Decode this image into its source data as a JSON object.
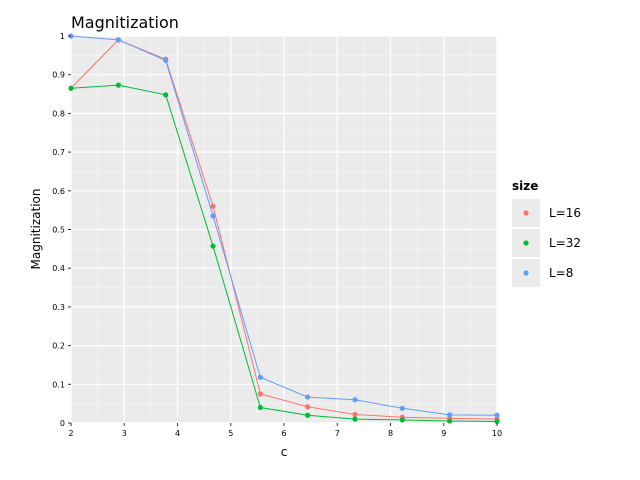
{
  "chart_data": {
    "type": "line",
    "title": "Magnitization",
    "xlabel": "c",
    "ylabel": "Magnitization",
    "xlim": [
      2,
      10
    ],
    "ylim": [
      0,
      1
    ],
    "x_ticks": [
      2,
      3,
      4,
      5,
      6,
      7,
      8,
      9,
      10
    ],
    "y_ticks": [
      0,
      0.1,
      0.2,
      0.3,
      0.4,
      0.5,
      0.6,
      0.7,
      0.8,
      0.9,
      1
    ],
    "grid": true,
    "legend": {
      "title": "size",
      "placement": "right",
      "entries": [
        "L=16",
        "L=32",
        "L=8"
      ]
    },
    "x": [
      2.0,
      2.889,
      3.778,
      4.667,
      5.556,
      6.444,
      7.333,
      8.222,
      9.111,
      10.0
    ],
    "series": [
      {
        "name": "L=16",
        "color": "#F8766D",
        "values": [
          0.865,
          0.99,
          0.94,
          0.56,
          0.075,
          0.042,
          0.022,
          0.015,
          0.012,
          0.01
        ]
      },
      {
        "name": "L=32",
        "color": "#00BA38",
        "values": [
          0.865,
          0.873,
          0.848,
          0.457,
          0.04,
          0.02,
          0.01,
          0.008,
          0.005,
          0.004
        ]
      },
      {
        "name": "L=8",
        "color": "#619CFF",
        "values": [
          1.0,
          0.99,
          0.937,
          0.535,
          0.118,
          0.067,
          0.06,
          0.038,
          0.021,
          0.02
        ]
      }
    ],
    "colors": {
      "panel_background": "#EBEBEB",
      "grid_major": "#FFFFFF"
    }
  }
}
